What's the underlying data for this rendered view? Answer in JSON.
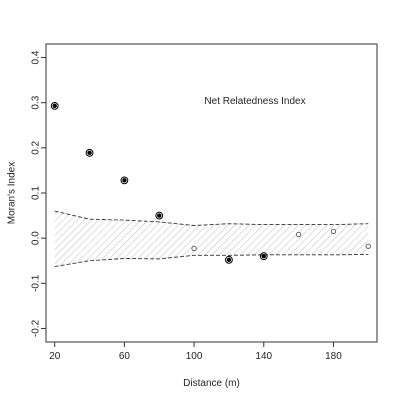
{
  "chart_data": {
    "type": "scatter",
    "title": "",
    "annotation": "Net Relatedness Index",
    "xlabel": "Distance (m)",
    "ylabel": "Moran's Index",
    "xlim": [
      15,
      205
    ],
    "ylim": [
      -0.23,
      0.43
    ],
    "xticks": [
      20,
      60,
      100,
      140,
      180
    ],
    "yticks": [
      -0.2,
      -0.1,
      0.0,
      0.1,
      0.2,
      0.3,
      0.4
    ],
    "xtick_labels": [
      "20",
      "60",
      "100",
      "140",
      "180"
    ],
    "ytick_labels": [
      "-0.2",
      "-0.1",
      "0.0",
      "0.1",
      "0.2",
      "0.3",
      "0.4"
    ],
    "points": [
      {
        "x": 20,
        "y": 0.293,
        "significant": true
      },
      {
        "x": 40,
        "y": 0.189,
        "significant": true
      },
      {
        "x": 60,
        "y": 0.128,
        "significant": true
      },
      {
        "x": 80,
        "y": 0.05,
        "significant": true
      },
      {
        "x": 100,
        "y": -0.023,
        "significant": false
      },
      {
        "x": 120,
        "y": -0.048,
        "significant": true
      },
      {
        "x": 140,
        "y": -0.04,
        "significant": true
      },
      {
        "x": 160,
        "y": 0.008,
        "significant": false
      },
      {
        "x": 180,
        "y": 0.015,
        "significant": false
      },
      {
        "x": 200,
        "y": -0.018,
        "significant": false
      }
    ],
    "envelope": {
      "x": [
        20,
        40,
        60,
        80,
        100,
        120,
        140,
        160,
        180,
        200
      ],
      "upper": [
        0.06,
        0.042,
        0.04,
        0.036,
        0.028,
        0.032,
        0.03,
        0.03,
        0.03,
        0.032
      ],
      "lower": [
        -0.063,
        -0.05,
        -0.045,
        -0.046,
        -0.038,
        -0.038,
        -0.037,
        -0.037,
        -0.037,
        -0.036
      ]
    },
    "grid": false,
    "colors": {
      "significant_point": "#000000",
      "nonsignificant_point": "#555555",
      "envelope_line": "#333333",
      "envelope_hatch": "#b0b0b0",
      "axis": "#333333"
    }
  }
}
